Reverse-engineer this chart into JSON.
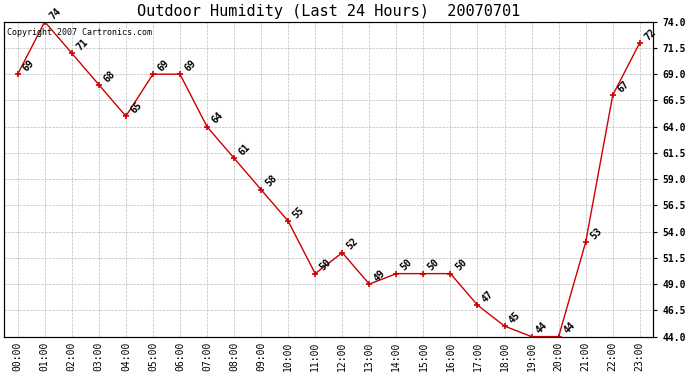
{
  "title": "Outdoor Humidity (Last 24 Hours)  20070701",
  "copyright": "Copyright 2007 Cartronics.com",
  "x_labels": [
    "00:00",
    "01:00",
    "02:00",
    "03:00",
    "04:00",
    "05:00",
    "06:00",
    "07:00",
    "08:00",
    "09:00",
    "10:00",
    "11:00",
    "12:00",
    "13:00",
    "14:00",
    "15:00",
    "16:00",
    "17:00",
    "18:00",
    "19:00",
    "20:00",
    "21:00",
    "22:00",
    "23:00"
  ],
  "hrs": [
    0,
    1,
    2,
    3,
    4,
    5,
    6,
    7,
    8,
    9,
    10,
    11,
    12,
    13,
    14,
    15,
    16,
    17,
    18,
    19,
    20,
    21,
    22,
    23
  ],
  "vals": [
    69,
    74,
    71,
    68,
    65,
    69,
    69,
    64,
    61,
    58,
    55,
    50,
    52,
    49,
    50,
    50,
    50,
    47,
    45,
    44,
    44,
    53,
    67,
    72
  ],
  "line_color": "#cc0000",
  "marker_color": "#cc0000",
  "bg_color": "#ffffff",
  "grid_color": "#bbbbbb",
  "ylim_min": 44.0,
  "ylim_max": 74.0,
  "yticks": [
    44.0,
    46.5,
    49.0,
    51.5,
    54.0,
    56.5,
    59.0,
    61.5,
    64.0,
    66.5,
    69.0,
    71.5,
    74.0
  ],
  "title_fontsize": 11,
  "tick_fontsize": 7,
  "annotation_fontsize": 7,
  "copyright_fontsize": 6
}
